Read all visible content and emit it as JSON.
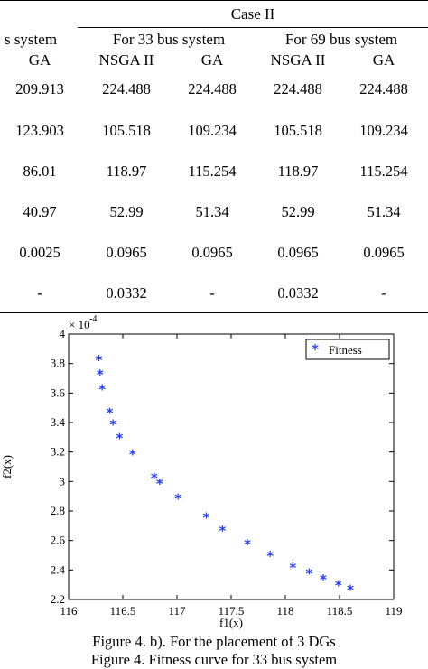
{
  "table": {
    "case_label": "Case II",
    "group_headers": [
      "s system",
      "For 33 bus system",
      "For 69 bus system"
    ],
    "column_headers": [
      "GA",
      "NSGA II",
      "GA",
      "NSGA II",
      "GA"
    ],
    "rows": [
      [
        "209.913",
        "224.488",
        "224.488",
        "224.488",
        "224.488"
      ],
      [
        "123.903",
        "105.518",
        "109.234",
        "105.518",
        "109.234"
      ],
      [
        "86.01",
        "118.97",
        "115.254",
        "118.97",
        "115.254"
      ],
      [
        "40.97",
        "52.99",
        "51.34",
        "52.99",
        "51.34"
      ],
      [
        "0.0025",
        "0.0965",
        "0.0965",
        "0.0965",
        "0.0965"
      ],
      [
        "-",
        "0.0332",
        "-",
        "0.0332",
        "-"
      ]
    ]
  },
  "chart_data": {
    "type": "scatter",
    "xlabel": "f1(x)",
    "ylabel": "f2(x)",
    "y_multiplier_label": "× 10",
    "y_multiplier_exponent": "-4",
    "xlim": [
      116,
      119
    ],
    "ylim": [
      2.2,
      4.0
    ],
    "x_ticks": [
      "116",
      "116.5",
      "117",
      "117.5",
      "118",
      "118.5",
      "119"
    ],
    "y_ticks": [
      "2.2",
      "2.4",
      "2.6",
      "2.8",
      "3",
      "3.2",
      "3.4",
      "3.6",
      "3.8",
      "4"
    ],
    "grid": false,
    "legend_position": "top-right",
    "series": [
      {
        "name": "Fitness",
        "marker": "*",
        "color": "#1f3cff",
        "points": [
          [
            116.28,
            3.83
          ],
          [
            116.29,
            3.73
          ],
          [
            116.31,
            3.63
          ],
          [
            116.38,
            3.47
          ],
          [
            116.41,
            3.39
          ],
          [
            116.47,
            3.3
          ],
          [
            116.59,
            3.19
          ],
          [
            116.79,
            3.03
          ],
          [
            116.84,
            2.99
          ],
          [
            117.01,
            2.89
          ],
          [
            117.27,
            2.76
          ],
          [
            117.42,
            2.67
          ],
          [
            117.65,
            2.58
          ],
          [
            117.86,
            2.5
          ],
          [
            118.07,
            2.42
          ],
          [
            118.22,
            2.38
          ],
          [
            118.35,
            2.34
          ],
          [
            118.49,
            2.3
          ],
          [
            118.6,
            2.27
          ]
        ]
      }
    ]
  },
  "captions": {
    "line1": "Figure 4. b). For the placement of 3 DGs",
    "line2": "Figure 4. Fitness curve for 33 bus system"
  }
}
